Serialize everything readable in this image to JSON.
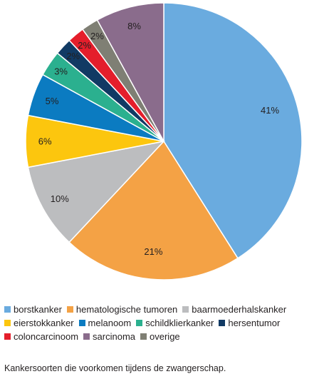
{
  "chart_data": {
    "type": "pie",
    "title": "",
    "slices": [
      {
        "label": "borstkanker",
        "value": 41,
        "text": "41%",
        "color": "#6aabdf"
      },
      {
        "label": "hematologische tumoren",
        "value": 21,
        "text": "21%",
        "color": "#f4a245"
      },
      {
        "label": "baarmoederhalskanker",
        "value": 10,
        "text": "10%",
        "color": "#bcbdbf"
      },
      {
        "label": "eierstokkanker",
        "value": 6,
        "text": "6%",
        "color": "#fcc60e"
      },
      {
        "label": "melanoom",
        "value": 5,
        "text": "5%",
        "color": "#0b7bc1"
      },
      {
        "label": "schildklierkanker",
        "value": 3,
        "text": "3%",
        "color": "#2bb08f"
      },
      {
        "label": "hersentumor",
        "value": 2,
        "text": "2%",
        "color": "#113a64"
      },
      {
        "label": "coloncarcinoom",
        "value": 2,
        "text": "2%",
        "color": "#e41e2b"
      },
      {
        "label": "overige",
        "value": 2,
        "text": "2%",
        "color": "#7f7f74"
      },
      {
        "label": "sarcinoma",
        "value": 8,
        "text": "8%",
        "color": "#8a6c8c"
      }
    ],
    "legend": {
      "placement": "bottom",
      "rows": [
        [
          {
            "label": "borstkanker",
            "color": "#6aabdf"
          },
          {
            "label": "hematologische tumoren",
            "color": "#f4a245"
          },
          {
            "label": "baarmoederhalskanker",
            "color": "#bcbdbf"
          }
        ],
        [
          {
            "label": "eierstokkanker",
            "color": "#fcc60e"
          },
          {
            "label": "melanoom",
            "color": "#0b7bc1"
          },
          {
            "label": "schildklierkanker",
            "color": "#2bb08f"
          },
          {
            "label": "hersentumor",
            "color": "#113a64"
          }
        ],
        [
          {
            "label": "coloncarcinoom",
            "color": "#e41e2b"
          },
          {
            "label": "sarcinoma",
            "color": "#8a6c8c"
          },
          {
            "label": "overige",
            "color": "#7f7f74"
          }
        ]
      ]
    }
  },
  "caption": "Kankersoorten die voorkomen tijdens de zwangerschap."
}
